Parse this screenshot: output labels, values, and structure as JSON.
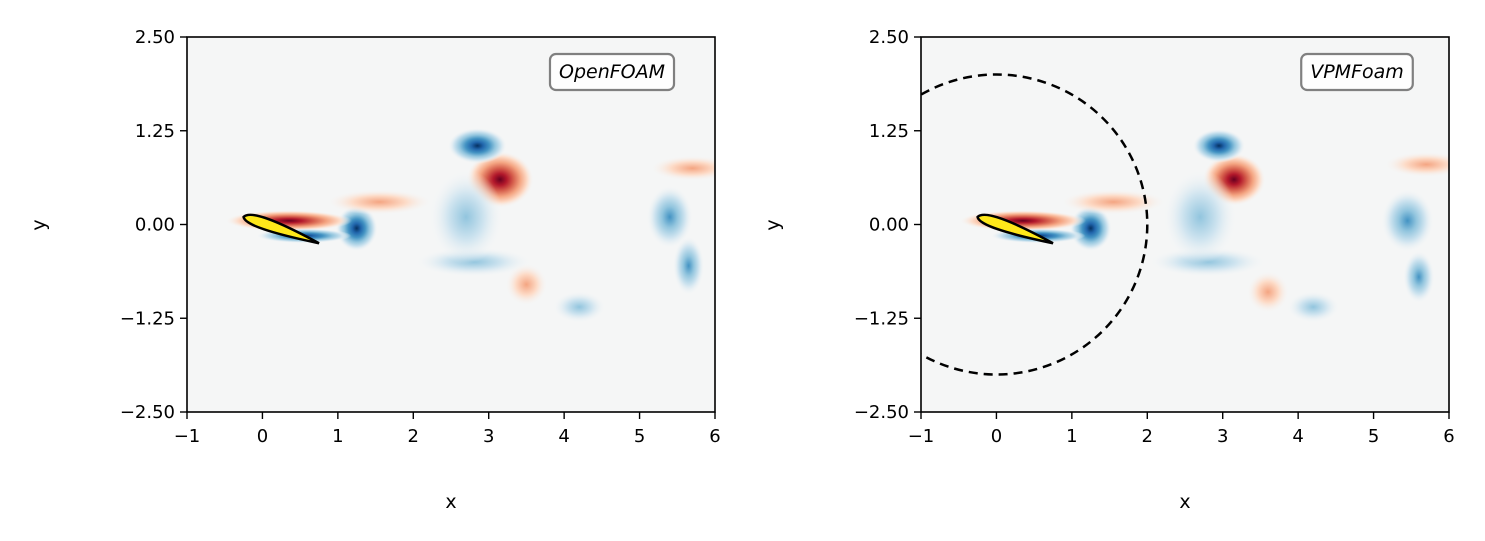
{
  "chart_data": [
    {
      "type": "heatmap",
      "panel_label": "OpenFOAM",
      "xlabel": "x",
      "ylabel": "y",
      "xlim": [
        -1,
        6
      ],
      "ylim": [
        -2.5,
        2.5
      ],
      "xticks": [
        "−1",
        "0",
        "1",
        "2",
        "3",
        "4",
        "5",
        "6"
      ],
      "yticks": [
        "2.50",
        "1.25",
        "0.00",
        "−1.25",
        "−2.50"
      ],
      "xtick_values": [
        -1,
        0,
        1,
        2,
        3,
        4,
        5,
        6
      ],
      "ytick_values": [
        2.5,
        1.25,
        0,
        -1.25,
        -2.5
      ],
      "colormap": "RdBu_r",
      "background_color": "#f5f6f6",
      "airfoil": {
        "leading_edge": [
          -0.25,
          0.1
        ],
        "trailing_edge": [
          0.75,
          -0.25
        ],
        "fill": "#ffe81a",
        "outline": "#000000"
      },
      "vortices": [
        {
          "x": 3.15,
          "y": 0.6,
          "rx": 0.32,
          "ry": 0.27,
          "sign": "positive",
          "strength": 1.0
        },
        {
          "x": 2.85,
          "y": 1.05,
          "rx": 0.28,
          "ry": 0.17,
          "sign": "negative",
          "strength": 0.9
        },
        {
          "x": 1.25,
          "y": -0.05,
          "rx": 0.2,
          "ry": 0.22,
          "sign": "negative",
          "strength": 0.95
        },
        {
          "x": 1.55,
          "y": 0.3,
          "rx": 0.5,
          "ry": 0.12,
          "sign": "positive",
          "strength": 0.35
        },
        {
          "x": 5.4,
          "y": 0.1,
          "rx": 0.22,
          "ry": 0.3,
          "sign": "negative",
          "strength": 0.45
        },
        {
          "x": 5.65,
          "y": -0.55,
          "rx": 0.15,
          "ry": 0.28,
          "sign": "negative",
          "strength": 0.4
        },
        {
          "x": 5.7,
          "y": 0.75,
          "rx": 0.4,
          "ry": 0.12,
          "sign": "positive",
          "strength": 0.25
        },
        {
          "x": 4.2,
          "y": -1.1,
          "rx": 0.25,
          "ry": 0.15,
          "sign": "negative",
          "strength": 0.3
        },
        {
          "x": 2.8,
          "y": -0.5,
          "rx": 0.55,
          "ry": 0.14,
          "sign": "negative",
          "strength": 0.18
        },
        {
          "x": 3.5,
          "y": -0.8,
          "rx": 0.2,
          "ry": 0.2,
          "sign": "positive",
          "strength": 0.15
        },
        {
          "x": 2.7,
          "y": 0.1,
          "rx": 0.35,
          "ry": 0.45,
          "sign": "negative",
          "strength": 0.15
        },
        {
          "x": 0.35,
          "y": 0.05,
          "rx": 0.6,
          "ry": 0.1,
          "sign": "positive",
          "strength": 1.0
        },
        {
          "x": 0.55,
          "y": -0.15,
          "rx": 0.45,
          "ry": 0.07,
          "sign": "negative",
          "strength": 1.0
        }
      ],
      "dashed_circle": null
    },
    {
      "type": "heatmap",
      "panel_label": "VPMFoam",
      "xlabel": "x",
      "ylabel": "y",
      "xlim": [
        -1,
        6
      ],
      "ylim": [
        -2.5,
        2.5
      ],
      "xticks": [
        "−1",
        "0",
        "1",
        "2",
        "3",
        "4",
        "5",
        "6"
      ],
      "yticks": [
        "2.50",
        "1.25",
        "0.00",
        "−1.25",
        "−2.50"
      ],
      "xtick_values": [
        -1,
        0,
        1,
        2,
        3,
        4,
        5,
        6
      ],
      "ytick_values": [
        2.5,
        1.25,
        0,
        -1.25,
        -2.5
      ],
      "colormap": "RdBu_r",
      "background_color": "#f5f6f6",
      "airfoil": {
        "leading_edge": [
          -0.25,
          0.1
        ],
        "trailing_edge": [
          0.75,
          -0.25
        ],
        "fill": "#ffe81a",
        "outline": "#000000"
      },
      "vortices": [
        {
          "x": 3.15,
          "y": 0.6,
          "rx": 0.3,
          "ry": 0.25,
          "sign": "positive",
          "strength": 1.0
        },
        {
          "x": 2.95,
          "y": 1.05,
          "rx": 0.25,
          "ry": 0.16,
          "sign": "negative",
          "strength": 0.9
        },
        {
          "x": 1.25,
          "y": -0.05,
          "rx": 0.2,
          "ry": 0.22,
          "sign": "negative",
          "strength": 0.95
        },
        {
          "x": 1.55,
          "y": 0.3,
          "rx": 0.5,
          "ry": 0.12,
          "sign": "positive",
          "strength": 0.35
        },
        {
          "x": 5.45,
          "y": 0.05,
          "rx": 0.25,
          "ry": 0.3,
          "sign": "negative",
          "strength": 0.45
        },
        {
          "x": 5.6,
          "y": -0.7,
          "rx": 0.15,
          "ry": 0.25,
          "sign": "negative",
          "strength": 0.4
        },
        {
          "x": 5.7,
          "y": 0.8,
          "rx": 0.4,
          "ry": 0.12,
          "sign": "positive",
          "strength": 0.25
        },
        {
          "x": 4.2,
          "y": -1.1,
          "rx": 0.25,
          "ry": 0.15,
          "sign": "negative",
          "strength": 0.3
        },
        {
          "x": 2.8,
          "y": -0.5,
          "rx": 0.55,
          "ry": 0.14,
          "sign": "negative",
          "strength": 0.18
        },
        {
          "x": 3.6,
          "y": -0.9,
          "rx": 0.2,
          "ry": 0.2,
          "sign": "positive",
          "strength": 0.15
        },
        {
          "x": 2.7,
          "y": 0.1,
          "rx": 0.35,
          "ry": 0.45,
          "sign": "negative",
          "strength": 0.15
        },
        {
          "x": 0.35,
          "y": 0.05,
          "rx": 0.6,
          "ry": 0.1,
          "sign": "positive",
          "strength": 1.0
        },
        {
          "x": 0.55,
          "y": -0.15,
          "rx": 0.45,
          "ry": 0.07,
          "sign": "negative",
          "strength": 1.0
        }
      ],
      "dashed_circle": {
        "center": [
          0,
          0
        ],
        "radius": 2.0,
        "color": "#000000"
      }
    }
  ]
}
